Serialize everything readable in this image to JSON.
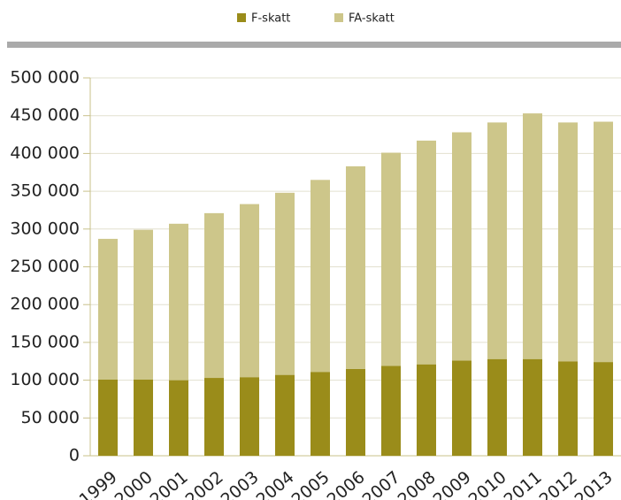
{
  "chart_data": {
    "type": "stacked_bar",
    "categories": [
      "1999",
      "2000",
      "2001",
      "2002",
      "2003",
      "2004",
      "2005",
      "2006",
      "2007",
      "2008",
      "2009",
      "2010",
      "2011",
      "2012",
      "2013"
    ],
    "series": [
      {
        "name": "F-skatt",
        "color": "#9a8c1a",
        "values": [
          101000,
          101000,
          100000,
          103000,
          104000,
          107000,
          111000,
          115000,
          119000,
          121000,
          126000,
          128000,
          128000,
          125000,
          124000
        ]
      },
      {
        "name": "FA-skatt",
        "color": "#cdc68a",
        "values": [
          186000,
          198000,
          207000,
          218000,
          229000,
          241000,
          254000,
          268000,
          282000,
          296000,
          302000,
          313000,
          325000,
          316000,
          318000
        ]
      }
    ],
    "ylim": [
      0,
      500000
    ],
    "yticks": [
      0,
      {
        "value": 50000,
        "label": "50 000"
      },
      {
        "value": 100000,
        "label": "100 000"
      },
      {
        "value": 150000,
        "label": "150 000"
      },
      {
        "value": 200000,
        "label": "200 000"
      },
      {
        "value": 250000,
        "label": "250 000"
      },
      {
        "value": 300000,
        "label": "300 000"
      },
      {
        "value": 350000,
        "label": "350 000"
      },
      {
        "value": 400000,
        "label": "400 000"
      },
      {
        "value": 450000,
        "label": "450 000"
      },
      {
        "value": 500000,
        "label": "500 000"
      }
    ],
    "grid": true,
    "legend": "top"
  }
}
